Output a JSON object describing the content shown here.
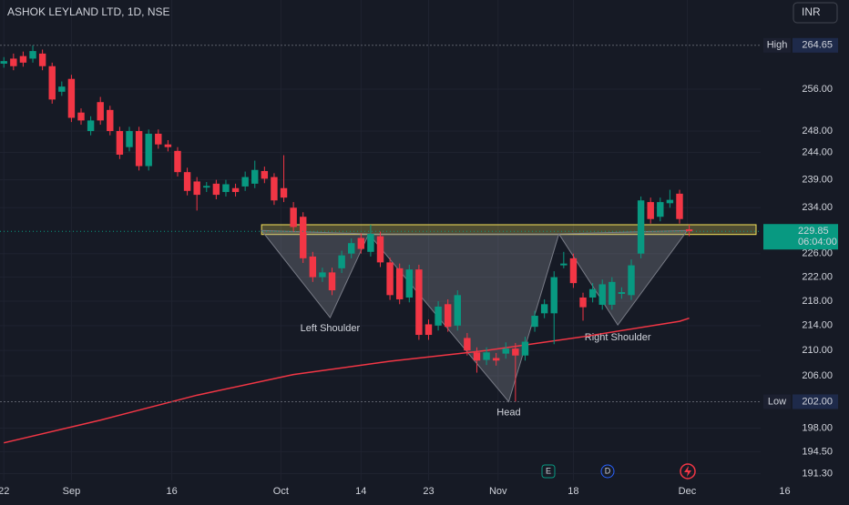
{
  "chart_data": {
    "type": "candlestick",
    "title": "ASHOK LEYLAND LTD, 1D, NSE",
    "currency": "INR",
    "log_scale": true,
    "grid": true,
    "up_color": "#089981",
    "down_color": "#f23645",
    "xlim": [
      -0.4,
      78.4
    ],
    "ylim": [
      190.3,
      273.9
    ],
    "xticks": [
      {
        "value": 0,
        "label": "22"
      },
      {
        "value": 7,
        "label": "Sep"
      },
      {
        "value": 17.4,
        "label": "16"
      },
      {
        "value": 28.7,
        "label": "Oct"
      },
      {
        "value": 37,
        "label": "14"
      },
      {
        "value": 44,
        "label": "23"
      },
      {
        "value": 51.2,
        "label": "Nov"
      },
      {
        "value": 59,
        "label": "18"
      },
      {
        "value": 70.8,
        "label": "Dec"
      },
      {
        "value": 80.9,
        "label": "16"
      }
    ],
    "yticks": [
      {
        "value": 256,
        "label": "256.00"
      },
      {
        "value": 248,
        "label": "248.00"
      },
      {
        "value": 244,
        "label": "244.00"
      },
      {
        "value": 239,
        "label": "239.00"
      },
      {
        "value": 234,
        "label": "234.00"
      },
      {
        "value": 226,
        "label": "226.00"
      },
      {
        "value": 222,
        "label": "222.00"
      },
      {
        "value": 218,
        "label": "218.00"
      },
      {
        "value": 214,
        "label": "214.00"
      },
      {
        "value": 210,
        "label": "210.00"
      },
      {
        "value": 206,
        "label": "206.00"
      },
      {
        "value": 198,
        "label": "198.00"
      },
      {
        "value": 194.5,
        "label": "194.50"
      },
      {
        "value": 191.3,
        "label": "191.30"
      }
    ],
    "open": [
      261,
      262,
      262.5,
      262,
      263,
      260.5,
      255.5,
      258,
      251.5,
      248,
      253.5,
      252,
      248,
      245,
      248,
      241.5,
      247.5,
      245.5,
      244.3,
      240.4,
      238.7,
      237.6,
      238.3,
      236.8,
      237.5,
      237.8,
      238.3,
      240.6,
      239.5,
      237.5,
      234,
      232.4,
      225.5,
      222,
      222.8,
      223.5,
      226,
      228.7,
      226.3,
      229,
      224.5,
      223.5,
      218.6,
      223.3,
      214.2,
      214,
      217.5,
      214,
      212,
      209.7,
      208.5,
      208.8,
      209.5,
      210.3,
      209.2,
      213.8,
      216,
      216,
      224,
      225.2,
      218.6,
      218.6,
      217.4,
      217.4,
      219.2,
      219,
      226,
      235,
      232.4,
      234.8,
      236.5,
      230.2
    ],
    "high": [
      262.3,
      263,
      263.4,
      264.65,
      263.8,
      261.2,
      257.5,
      258.8,
      252.3,
      250.8,
      254.5,
      252.8,
      248.8,
      248.8,
      248.8,
      248.3,
      248.3,
      246.3,
      245,
      241.2,
      239.5,
      238.6,
      239,
      239,
      238.3,
      240.5,
      242.5,
      241.4,
      240.2,
      243.5,
      235,
      233.2,
      226.3,
      223.6,
      223.6,
      226.5,
      228.6,
      229.5,
      231,
      229.8,
      225.3,
      224.3,
      224.1,
      224.1,
      215,
      218,
      218.3,
      219.8,
      212.8,
      210.5,
      210.5,
      209.6,
      211.3,
      211.2,
      212.2,
      216.4,
      218.3,
      223,
      226.3,
      226,
      219.4,
      221,
      221.6,
      222,
      220.3,
      225,
      236,
      235.8,
      235.8,
      237.2,
      237.2,
      231
    ],
    "low": [
      260.2,
      259.7,
      260.4,
      261.2,
      259.7,
      253.2,
      254.7,
      249.7,
      249.2,
      247.2,
      249.2,
      247.2,
      242.8,
      244.2,
      240.7,
      240.7,
      244.7,
      244.2,
      239.6,
      236.2,
      233.5,
      236.8,
      235.5,
      236,
      236,
      237,
      237.5,
      238.4,
      234.5,
      235,
      229.8,
      224.4,
      221.2,
      221.2,
      219,
      222.7,
      225.2,
      226,
      225.5,
      223.7,
      218.2,
      217.5,
      217.8,
      211.7,
      211.7,
      213.2,
      213,
      213.2,
      209.2,
      206.5,
      207.7,
      207.6,
      208.7,
      202,
      208.4,
      213,
      215.2,
      211,
      223.5,
      220.2,
      214.8,
      217.8,
      216.6,
      216.6,
      218.4,
      218.2,
      225.2,
      231.2,
      231.6,
      234,
      231.2,
      229
    ],
    "close": [
      261.5,
      260.5,
      261.2,
      263.5,
      260.5,
      254,
      256.5,
      250.5,
      250,
      250,
      250,
      248,
      243.6,
      248,
      241.5,
      247.5,
      245.5,
      245,
      240.4,
      237,
      236.3,
      237.9,
      236.3,
      238.2,
      236.8,
      239.5,
      240.8,
      239.2,
      235.3,
      235.8,
      230.6,
      225.2,
      222,
      222.8,
      219.8,
      225.7,
      227.8,
      226.8,
      229.4,
      224.5,
      219,
      218.3,
      223.3,
      212.5,
      212.5,
      217.1,
      213.8,
      219,
      210,
      208.4,
      209.7,
      208.4,
      210.3,
      209.2,
      211.4,
      215.6,
      217.5,
      222,
      224.3,
      221,
      217,
      220,
      220.8,
      221.2,
      219.5,
      224,
      235.3,
      232,
      235,
      235.4,
      232,
      229.85
    ],
    "ma": {
      "color": "#f23645",
      "x": [
        0,
        10,
        20,
        30,
        40,
        50,
        60,
        70,
        71
      ],
      "values": [
        195.8,
        199.2,
        203.0,
        206.2,
        208.3,
        210.0,
        212.2,
        214.7,
        215.2
      ]
    },
    "zone": {
      "start": 26.7,
      "low": 229.3,
      "high": 231.0,
      "color": "#f7e35a"
    },
    "pattern": {
      "points": [
        [
          26.7,
          230
        ],
        [
          33.8,
          215.3
        ],
        [
          37.8,
          229.4
        ],
        [
          52.3,
          202
        ],
        [
          57.5,
          229.4
        ],
        [
          63.6,
          214.1
        ],
        [
          70.8,
          230
        ]
      ],
      "labels": [
        "Left Shoulder",
        "Head",
        "Right Shoulder"
      ]
    },
    "high_marker": {
      "label": "High",
      "value": 264.65
    },
    "low_marker": {
      "label": "Low",
      "value": 202,
      "value_label": "202.00"
    },
    "last": {
      "value": 229.85,
      "countdown": "06:04:00"
    },
    "events": [
      "E",
      "D"
    ]
  }
}
